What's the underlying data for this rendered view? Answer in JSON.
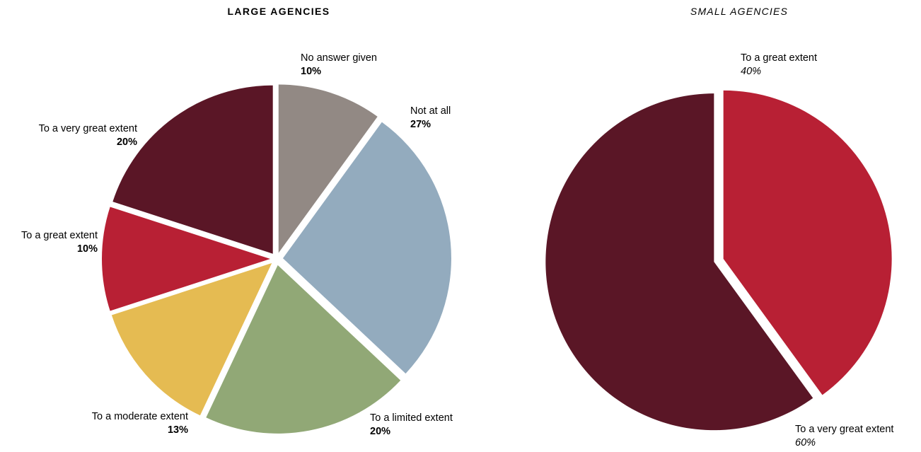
{
  "chart_data": [
    {
      "type": "pie",
      "title": "LARGE AGENCIES",
      "start_category": "No answer given",
      "direction": "clockwise",
      "slices": [
        {
          "label": "No answer given",
          "value": 10,
          "display": "10%",
          "color": "#928984"
        },
        {
          "label": "Not at all",
          "value": 27,
          "display": "27%",
          "color": "#93abbe"
        },
        {
          "label": "To a limited extent",
          "value": 20,
          "display": "20%",
          "color": "#91a876"
        },
        {
          "label": "To a moderate extent",
          "value": 13,
          "display": "13%",
          "color": "#e5bb52"
        },
        {
          "label": "To a great extent",
          "value": 10,
          "display": "10%",
          "color": "#b82034"
        },
        {
          "label": "To a very great extent",
          "value": 20,
          "display": "20%",
          "color": "#5a1626"
        }
      ]
    },
    {
      "type": "pie",
      "title": "SMALL AGENCIES",
      "start_category": "To a great extent",
      "direction": "clockwise",
      "slices": [
        {
          "label": "To a great extent",
          "value": 40,
          "display": "40%",
          "color": "#b82034"
        },
        {
          "label": "To a very great extent",
          "value": 60,
          "display": "60%",
          "color": "#5a1626"
        }
      ]
    }
  ]
}
